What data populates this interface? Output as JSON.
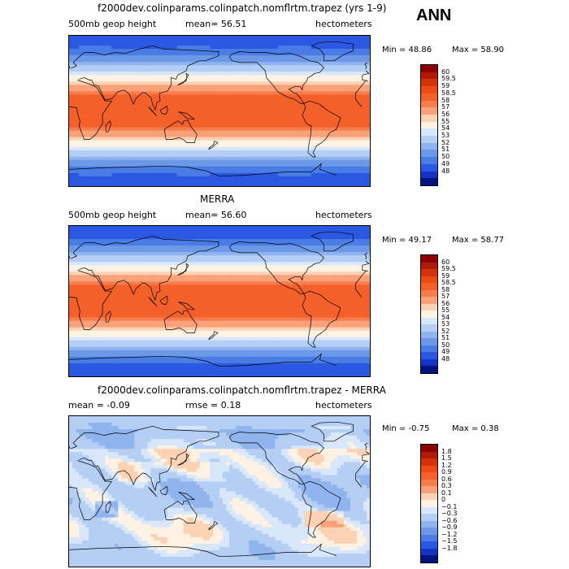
{
  "season": "ANN",
  "panels": [
    {
      "title": "f2000dev.colinparams.colinpatch.nomflrtm.trapez (yrs 1-9)",
      "left_label": "500mb geop height",
      "mid_label": "mean=  56.51",
      "units": "hectometers",
      "min_label": "Min =  48.86",
      "max_label": "Max =  58.90",
      "field": "abs",
      "colorbar": {
        "labels": [
          "60",
          "59.5",
          "59",
          "58.5",
          "58",
          "57",
          "56",
          "55",
          "54",
          "53",
          "52",
          "51",
          "50",
          "49",
          "48"
        ],
        "colors": [
          "#8b0000",
          "#b11a04",
          "#d43308",
          "#ee4a14",
          "#f4602a",
          "#f77d4d",
          "#f9a178",
          "#fcd2b4",
          "#fdf2e3",
          "#d8e8fa",
          "#b4cef4",
          "#90b4ee",
          "#6c98e8",
          "#4a7ce6",
          "#2b58e0",
          "#1432c6",
          "#00127f"
        ]
      }
    },
    {
      "title": "MERRA",
      "left_label": "500mb geop height",
      "mid_label": "mean=  56.60",
      "units": "hectometers",
      "min_label": "Min =  49.17",
      "max_label": "Max =  58.77",
      "field": "abs",
      "colorbar": {
        "labels": [
          "60",
          "59.5",
          "59",
          "58.5",
          "58",
          "57",
          "56",
          "55",
          "54",
          "53",
          "52",
          "51",
          "50",
          "49",
          "48"
        ],
        "colors": [
          "#8b0000",
          "#b11a04",
          "#d43308",
          "#ee4a14",
          "#f4602a",
          "#f77d4d",
          "#f9a178",
          "#fcd2b4",
          "#fdf2e3",
          "#d8e8fa",
          "#b4cef4",
          "#90b4ee",
          "#6c98e8",
          "#4a7ce6",
          "#2b58e0",
          "#1432c6",
          "#00127f"
        ]
      }
    },
    {
      "title": "f2000dev.colinparams.colinpatch.nomflrtm.trapez - MERRA",
      "left_label": "mean =  -0.09",
      "mid_label": "rmse =   0.18",
      "units": "hectometers",
      "min_label": "Min =  -0.75",
      "max_label": "Max =   0.38",
      "field": "diff",
      "colorbar": {
        "labels": [
          "1.8",
          "1.5",
          "1.2",
          "0.9",
          "0.6",
          "0.3",
          "0.1",
          "0",
          "−0.1",
          "−0.3",
          "−0.6",
          "−0.9",
          "−1.2",
          "−1.5",
          "−1.8"
        ],
        "colors": [
          "#8b0000",
          "#b11a04",
          "#d43308",
          "#ee4a14",
          "#f4602a",
          "#f77d4d",
          "#f9a178",
          "#fcd2b4",
          "#fdf2e3",
          "#d8e8fa",
          "#b4cef4",
          "#90b4ee",
          "#6c98e8",
          "#4a7ce6",
          "#2b58e0",
          "#1432c6",
          "#00127f"
        ]
      }
    }
  ]
}
